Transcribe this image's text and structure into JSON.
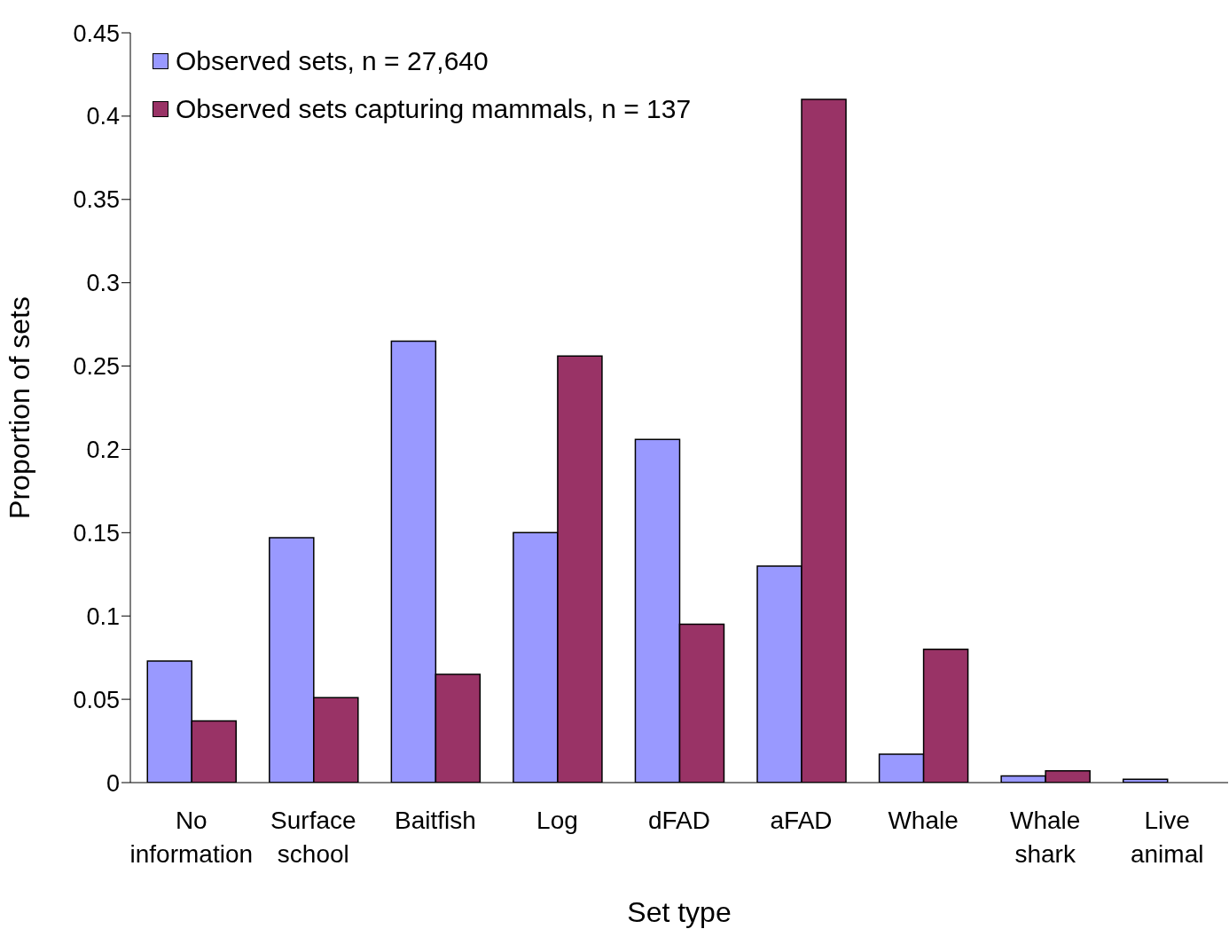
{
  "chart_data": {
    "type": "bar",
    "xlabel": "Set type",
    "ylabel": "Proportion of sets",
    "categories": [
      "No information",
      "Surface school",
      "Baitfish",
      "Log",
      "dFAD",
      "aFAD",
      "Whale",
      "Whale shark",
      "Live animal"
    ],
    "series": [
      {
        "name": "Observed sets, n = 27,640",
        "color": "#9999ff",
        "values": [
          0.073,
          0.147,
          0.265,
          0.15,
          0.206,
          0.13,
          0.017,
          0.004,
          0.002
        ]
      },
      {
        "name": "Observed sets capturing mammals, n = 137",
        "color": "#993366",
        "values": [
          0.037,
          0.051,
          0.065,
          0.256,
          0.095,
          0.41,
          0.08,
          0.007,
          null
        ]
      }
    ],
    "ylim": [
      0,
      0.45
    ],
    "yticks": [
      0,
      0.05,
      0.1,
      0.15,
      0.2,
      0.25,
      0.3,
      0.35,
      0.4,
      0.45
    ],
    "grid": false,
    "legend": "top left"
  }
}
